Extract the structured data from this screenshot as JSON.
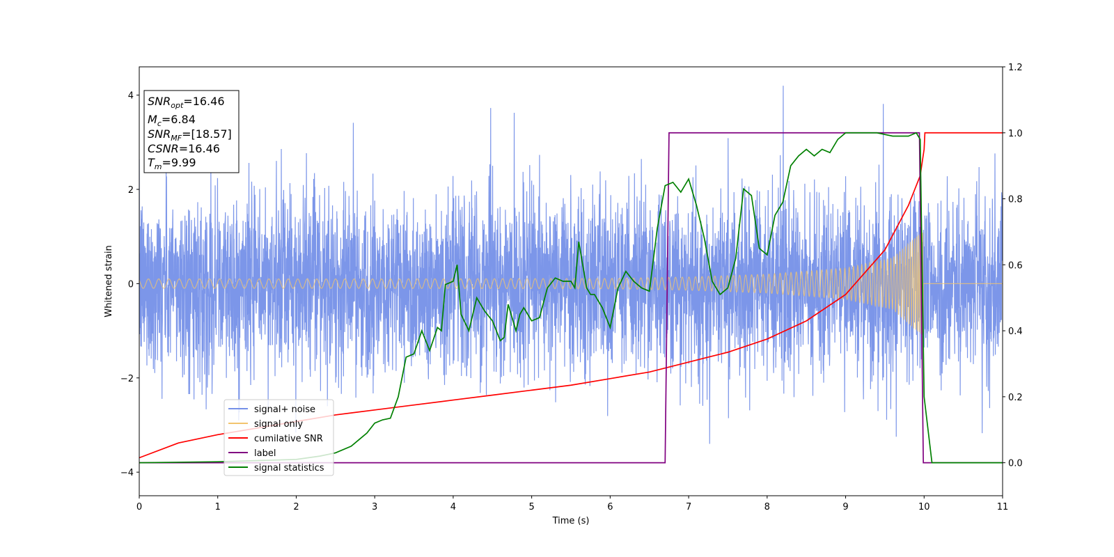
{
  "chart_data": {
    "type": "line",
    "xlabel": "Time (s)",
    "ylabel": "Whitened strain",
    "xlim": [
      0,
      11
    ],
    "ylim_left": [
      -4.5,
      4.6
    ],
    "ylim_right": [
      -0.1,
      1.2
    ],
    "x_ticks": [
      0,
      1,
      2,
      3,
      4,
      5,
      6,
      7,
      8,
      9,
      10,
      11
    ],
    "y_ticks_left": [
      -4,
      -2,
      0,
      2,
      4
    ],
    "y_ticks_right": [
      0.0,
      0.2,
      0.4,
      0.6,
      0.8,
      1.0,
      1.2
    ],
    "grid": false,
    "legend_position": "lower-left",
    "info_box": {
      "snr_opt": "=16.46",
      "mc": "=6.84",
      "snr_mf": "=[18.57]",
      "csnr": "=16.46",
      "tm": "=9.99"
    },
    "series": [
      {
        "name": "signal+ noise",
        "color": "#7590e8",
        "axis": "left",
        "description_style": "noisy strain, std ~0.95, sample rate high"
      },
      {
        "name": "signal only",
        "color": "#f2c46d",
        "axis": "left",
        "envelope_points": [
          [
            0,
            0.1
          ],
          [
            3,
            0.1
          ],
          [
            6,
            0.11
          ],
          [
            7,
            0.14
          ],
          [
            8,
            0.2
          ],
          [
            9,
            0.33
          ],
          [
            9.6,
            0.55
          ],
          [
            9.9,
            1.0
          ],
          [
            9.99,
            1.1
          ]
        ],
        "merger_time": 9.99
      },
      {
        "name": "cumilative SNR",
        "color": "#ff0000",
        "axis": "right",
        "x": [
          0,
          0.5,
          1,
          1.5,
          2,
          2.5,
          3,
          3.5,
          4,
          4.5,
          5,
          5.5,
          6,
          6.5,
          7,
          7.5,
          8,
          8.5,
          9,
          9.5,
          9.8,
          9.95,
          10.0,
          10.01,
          11
        ],
        "y": [
          0.015,
          0.06,
          0.085,
          0.105,
          0.125,
          0.145,
          0.16,
          0.175,
          0.19,
          0.205,
          0.22,
          0.235,
          0.255,
          0.275,
          0.305,
          0.335,
          0.375,
          0.43,
          0.51,
          0.645,
          0.78,
          0.87,
          0.95,
          1.0,
          1.0
        ]
      },
      {
        "name": "label",
        "color": "#800080",
        "axis": "right",
        "x": [
          0,
          6.7,
          6.75,
          9.94,
          9.99,
          11
        ],
        "y": [
          0.0,
          0.0,
          1.0,
          1.0,
          0.0,
          0.0
        ]
      },
      {
        "name": "signal statistics",
        "color": "#008000",
        "axis": "right",
        "x": [
          0,
          1,
          2,
          2.3,
          2.5,
          2.7,
          2.8,
          2.9,
          3.0,
          3.1,
          3.2,
          3.3,
          3.4,
          3.5,
          3.6,
          3.7,
          3.8,
          3.85,
          3.9,
          4.0,
          4.05,
          4.1,
          4.2,
          4.3,
          4.4,
          4.5,
          4.6,
          4.65,
          4.7,
          4.8,
          4.85,
          4.9,
          5.0,
          5.1,
          5.2,
          5.3,
          5.4,
          5.5,
          5.55,
          5.6,
          5.7,
          5.75,
          5.8,
          5.9,
          6.0,
          6.1,
          6.2,
          6.3,
          6.4,
          6.5,
          6.6,
          6.7,
          6.8,
          6.9,
          7.0,
          7.1,
          7.2,
          7.3,
          7.4,
          7.5,
          7.6,
          7.7,
          7.8,
          7.9,
          8.0,
          8.1,
          8.2,
          8.3,
          8.4,
          8.5,
          8.6,
          8.7,
          8.8,
          8.9,
          9.0,
          9.2,
          9.4,
          9.6,
          9.8,
          9.9,
          9.95,
          10.0,
          10.1,
          11
        ],
        "y": [
          0.0,
          0.003,
          0.01,
          0.02,
          0.03,
          0.05,
          0.07,
          0.09,
          0.12,
          0.13,
          0.135,
          0.2,
          0.32,
          0.33,
          0.4,
          0.34,
          0.41,
          0.4,
          0.54,
          0.55,
          0.6,
          0.45,
          0.4,
          0.5,
          0.46,
          0.43,
          0.37,
          0.38,
          0.48,
          0.4,
          0.45,
          0.47,
          0.43,
          0.44,
          0.53,
          0.56,
          0.55,
          0.55,
          0.53,
          0.67,
          0.53,
          0.51,
          0.51,
          0.47,
          0.41,
          0.53,
          0.58,
          0.55,
          0.53,
          0.52,
          0.71,
          0.84,
          0.85,
          0.82,
          0.86,
          0.78,
          0.68,
          0.55,
          0.51,
          0.53,
          0.62,
          0.83,
          0.81,
          0.65,
          0.63,
          0.75,
          0.79,
          0.9,
          0.93,
          0.95,
          0.93,
          0.95,
          0.94,
          0.98,
          1.0,
          1.0,
          1.0,
          0.99,
          0.99,
          1.0,
          0.98,
          0.2,
          0.0,
          0.0
        ]
      }
    ]
  }
}
